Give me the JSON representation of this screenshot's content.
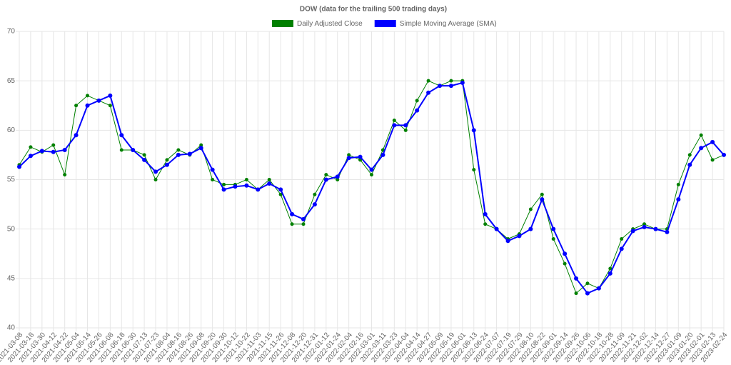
{
  "chart_data": {
    "type": "line",
    "title": "DOW (data for the trailing 500 trading days)",
    "categories": [
      "2021-03-08",
      "2021-03-18",
      "2021-03-30",
      "2021-04-12",
      "2021-04-22",
      "2021-05-04",
      "2021-05-14",
      "2021-05-26",
      "2021-06-08",
      "2021-06-18",
      "2021-06-30",
      "2021-07-13",
      "2021-07-23",
      "2021-08-04",
      "2021-08-16",
      "2021-08-26",
      "2021-09-08",
      "2021-09-20",
      "2021-09-30",
      "2021-10-12",
      "2021-10-22",
      "2021-11-03",
      "2021-11-15",
      "2021-11-26",
      "2021-12-08",
      "2021-12-20",
      "2021-12-31",
      "2022-01-12",
      "2022-01-24",
      "2022-02-04",
      "2022-02-16",
      "2022-03-01",
      "2022-03-11",
      "2022-03-23",
      "2022-04-04",
      "2022-04-14",
      "2022-04-27",
      "2022-05-09",
      "2022-05-19",
      "2022-06-01",
      "2022-06-13",
      "2022-06-24",
      "2022-07-07",
      "2022-07-19",
      "2022-07-29",
      "2022-08-10",
      "2022-08-22",
      "2022-09-01",
      "2022-09-14",
      "2022-09-26",
      "2022-10-06",
      "2022-10-18",
      "2022-10-28",
      "2022-11-09",
      "2022-11-21",
      "2022-12-02",
      "2022-12-14",
      "2022-12-27",
      "2023-01-09",
      "2023-01-20",
      "2023-02-01",
      "2023-02-13",
      "2023-02-24"
    ],
    "series": [
      {
        "name": "Daily Adjusted Close",
        "color": "#008000",
        "values": [
          56.5,
          58.3,
          57.8,
          58.5,
          55.5,
          62.5,
          63.5,
          63.0,
          62.5,
          58.0,
          58.0,
          57.5,
          55.0,
          57.0,
          58.0,
          57.5,
          58.5,
          55.0,
          54.5,
          54.5,
          55.0,
          54.0,
          55.0,
          53.5,
          50.5,
          50.5,
          53.5,
          55.5,
          55.0,
          57.5,
          57.0,
          55.5,
          58.0,
          61.0,
          60.0,
          63.0,
          65.0,
          64.5,
          65.0,
          65.0,
          56.0,
          50.5,
          50.0,
          49.0,
          49.5,
          52.0,
          53.5,
          49.0,
          46.5,
          43.5,
          44.5,
          44.0,
          46.0,
          49.0,
          50.0,
          50.5,
          50.0,
          50.0,
          54.5,
          57.5,
          59.5,
          57.0,
          57.5
        ]
      },
      {
        "name": "Simple Moving Average (SMA)",
        "color": "#0000ff",
        "values": [
          56.3,
          57.4,
          57.9,
          57.8,
          58.0,
          59.5,
          62.5,
          63.0,
          63.5,
          59.5,
          58.0,
          57.0,
          55.8,
          56.5,
          57.5,
          57.6,
          58.2,
          56.0,
          54.0,
          54.3,
          54.4,
          54.0,
          54.6,
          54.0,
          51.5,
          51.0,
          52.5,
          55.0,
          55.3,
          57.2,
          57.3,
          56.0,
          57.5,
          60.5,
          60.5,
          62.0,
          63.8,
          64.5,
          64.5,
          64.8,
          60.0,
          51.5,
          50.0,
          48.8,
          49.3,
          50.0,
          53.0,
          50.0,
          47.5,
          45.0,
          43.5,
          44.0,
          45.5,
          48.0,
          49.8,
          50.2,
          50.0,
          49.7,
          53.0,
          56.5,
          58.2,
          58.8,
          57.5
        ]
      }
    ],
    "ylim": [
      40,
      70
    ],
    "yticks": [
      40,
      45,
      50,
      55,
      60,
      65,
      70
    ],
    "grid": true,
    "legend": "top"
  }
}
